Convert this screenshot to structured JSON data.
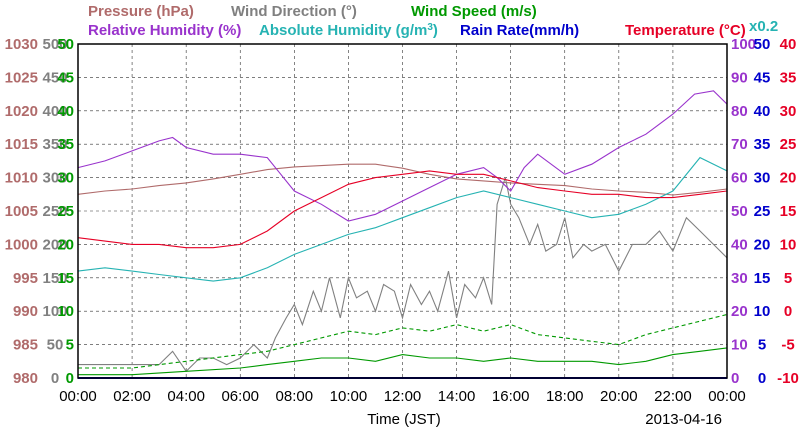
{
  "colors": {
    "pressure": "#b06b6b",
    "wind_direction": "#808080",
    "wind_speed": "#009900",
    "relative_humidity": "#9933cc",
    "absolute_humidity": "#26b3b3",
    "rain_rate": "#0000cc",
    "temperature": "#e60026",
    "grid": "#333333"
  },
  "chart_data": {
    "type": "line",
    "legend": {
      "row1": [
        {
          "key": "pressure",
          "text": "Pressure (hPa)"
        },
        {
          "key": "wind_direction",
          "text": "Wind Direction (°)"
        },
        {
          "key": "wind_speed",
          "text": "Wind Speed (m/s)"
        }
      ],
      "row2": [
        {
          "key": "relative_humidity",
          "text": "Relative Humidity (%)"
        },
        {
          "key": "absolute_humidity",
          "text": "Absolute Humidity (g/m",
          "sup": "3",
          "after": ")"
        },
        {
          "key": "rain_rate",
          "text": "Rain Rate(mm/h)"
        },
        {
          "key": "temperature",
          "text": "Temperature (°C)"
        }
      ],
      "multiplier": "x0.2"
    },
    "xlabel": "Time (JST)",
    "date": "2013-04-16",
    "x_ticks": [
      "00:00",
      "02:00",
      "04:00",
      "06:00",
      "08:00",
      "10:00",
      "12:00",
      "14:00",
      "16:00",
      "18:00",
      "20:00",
      "22:00",
      "00:00"
    ],
    "xlim": [
      0,
      24
    ],
    "axes": {
      "pressure": {
        "range": [
          980,
          1030
        ],
        "ticks": [
          "980",
          "985",
          "990",
          "995",
          "1000",
          "1005",
          "1010",
          "1015",
          "1020",
          "1025",
          "1030"
        ]
      },
      "wind_direction": {
        "range": [
          0,
          500
        ],
        "ticks": [
          "0",
          "50",
          "100",
          "150",
          "200",
          "250",
          "300",
          "350",
          "400",
          "450",
          "500"
        ]
      },
      "wind_speed": {
        "range": [
          0,
          50
        ],
        "ticks": [
          "0",
          "5",
          "10",
          "15",
          "20",
          "25",
          "30",
          "35",
          "40",
          "45",
          "50"
        ]
      },
      "relative_humidity": {
        "range": [
          0,
          100
        ],
        "ticks": [
          "0",
          "10",
          "20",
          "30",
          "40",
          "50",
          "60",
          "70",
          "80",
          "90",
          "100"
        ]
      },
      "absolute_humidity_x0_2": {
        "range": [
          0,
          50
        ],
        "ticks": [
          "0",
          "5",
          "10",
          "15",
          "20",
          "25",
          "30",
          "35",
          "40",
          "45",
          "50"
        ]
      },
      "rain_rate": {
        "range": [
          0,
          50
        ],
        "ticks": [
          "0",
          "5",
          "10",
          "15",
          "20",
          "25",
          "30",
          "35",
          "40",
          "45",
          "50"
        ]
      },
      "temperature": {
        "range": [
          -10,
          40
        ],
        "ticks": [
          "-10",
          "-5",
          "0",
          "5",
          "10",
          "15",
          "20",
          "25",
          "30",
          "35",
          "40"
        ]
      }
    },
    "series": [
      {
        "key": "pressure",
        "axis": "pressure",
        "x": [
          0,
          1,
          2,
          3,
          4,
          5,
          6,
          7,
          8,
          9,
          10,
          11,
          12,
          13,
          14,
          15,
          16,
          17,
          18,
          19,
          20,
          21,
          22,
          23,
          24
        ],
        "y": [
          1007.5,
          1008,
          1008.3,
          1008.8,
          1009.2,
          1009.8,
          1010.5,
          1011.2,
          1011.6,
          1011.8,
          1012,
          1012,
          1011.4,
          1010.5,
          1009.8,
          1009.5,
          1009.2,
          1009,
          1008.8,
          1008.3,
          1008,
          1007.8,
          1007.4,
          1007.8,
          1008.3
        ],
        "style": "line"
      },
      {
        "key": "wind_direction",
        "axis": "wind_direction",
        "x": [
          0,
          1,
          2,
          3,
          3.5,
          4,
          4.5,
          5,
          5.5,
          6,
          6.5,
          7,
          7.3,
          7.7,
          8,
          8.3,
          8.7,
          9,
          9.3,
          9.7,
          10,
          10.3,
          10.7,
          11,
          11.3,
          11.7,
          12,
          12.3,
          12.7,
          13,
          13.3,
          13.7,
          14,
          14.3,
          14.7,
          15,
          15.3,
          15.5,
          15.8,
          16,
          16.3,
          16.7,
          17,
          17.3,
          17.7,
          18,
          18.3,
          18.7,
          19,
          19.5,
          20,
          20.5,
          21,
          21.5,
          22,
          22.5,
          23,
          23.5,
          24
        ],
        "y": [
          20,
          20,
          20,
          20,
          40,
          10,
          30,
          30,
          20,
          30,
          50,
          30,
          60,
          90,
          110,
          80,
          130,
          100,
          150,
          90,
          150,
          120,
          130,
          100,
          140,
          130,
          90,
          140,
          110,
          130,
          100,
          160,
          90,
          140,
          120,
          150,
          110,
          260,
          300,
          260,
          240,
          200,
          230,
          190,
          200,
          240,
          180,
          200,
          190,
          200,
          160,
          200,
          200,
          220,
          190,
          240,
          220,
          200,
          180
        ],
        "style": "line"
      },
      {
        "key": "wind_speed",
        "axis": "wind_speed",
        "x": [
          0,
          2,
          4,
          6,
          7,
          8,
          9,
          10,
          11,
          12,
          13,
          14,
          15,
          16,
          17,
          18,
          19,
          20,
          21,
          22,
          23,
          24
        ],
        "y": [
          0.5,
          0.5,
          1,
          1.5,
          2,
          2.5,
          3,
          3,
          2.5,
          3.5,
          3,
          3,
          2.5,
          3,
          2.5,
          2.5,
          2.5,
          2,
          2.5,
          3.5,
          4,
          4.5
        ],
        "style": "line"
      },
      {
        "key": "wind_speed_gust",
        "axis": "wind_speed",
        "x": [
          0,
          2,
          4,
          6,
          7,
          8,
          9,
          10,
          11,
          12,
          13,
          14,
          15,
          16,
          17,
          18,
          19,
          20,
          21,
          22,
          23,
          24
        ],
        "y": [
          1.5,
          1.5,
          2.5,
          3.5,
          4,
          5,
          6,
          7,
          6.5,
          7.5,
          7,
          8,
          7,
          8,
          6.5,
          6,
          5.5,
          5,
          6.5,
          7.5,
          8.5,
          9.5
        ],
        "style": "dashed"
      },
      {
        "key": "relative_humidity",
        "axis": "relative_humidity",
        "x": [
          0,
          1,
          2,
          3,
          3.5,
          4,
          5,
          6,
          7,
          7.5,
          8,
          9,
          10,
          11,
          12,
          13,
          14,
          15,
          15.5,
          16,
          16.5,
          17,
          18,
          19,
          20,
          21,
          22,
          22.8,
          23.5,
          24
        ],
        "y": [
          63,
          65,
          68,
          71,
          72,
          69,
          67,
          67,
          66,
          61,
          56,
          52,
          47,
          49,
          53,
          57,
          61,
          63,
          60,
          56,
          63,
          67,
          61,
          64,
          69,
          73,
          79,
          85,
          86,
          82
        ],
        "style": "line"
      },
      {
        "key": "absolute_humidity",
        "axis": "absolute_humidity_x0_2",
        "x": [
          0,
          1,
          2,
          3,
          4,
          5,
          6,
          7,
          8,
          9,
          10,
          11,
          12,
          13,
          14,
          15,
          16,
          17,
          18,
          19,
          20,
          21,
          22,
          23,
          24
        ],
        "y": [
          16,
          16.5,
          16,
          15.5,
          15,
          14.5,
          15,
          16.5,
          18.5,
          20,
          21.5,
          22.5,
          24,
          25.5,
          27,
          28,
          27,
          26,
          25,
          24,
          24.5,
          26,
          28,
          33,
          31
        ],
        "style": "line"
      },
      {
        "key": "temperature",
        "axis": "temperature",
        "x": [
          0,
          1,
          2,
          3,
          4,
          5,
          6,
          7,
          8,
          9,
          10,
          11,
          12,
          13,
          14,
          15,
          16,
          17,
          18,
          19,
          20,
          21,
          22,
          23,
          24
        ],
        "y": [
          11,
          10.5,
          10,
          10,
          9.5,
          9.5,
          10,
          12,
          15,
          17,
          19,
          20,
          20.5,
          21,
          20.5,
          20.5,
          19.5,
          18.5,
          18,
          17.5,
          17.5,
          17,
          17,
          17.5,
          18
        ],
        "style": "line"
      },
      {
        "key": "rain_rate",
        "axis": "rain_rate",
        "x": [
          0,
          24
        ],
        "y": [
          0,
          0
        ],
        "style": "line"
      }
    ]
  }
}
